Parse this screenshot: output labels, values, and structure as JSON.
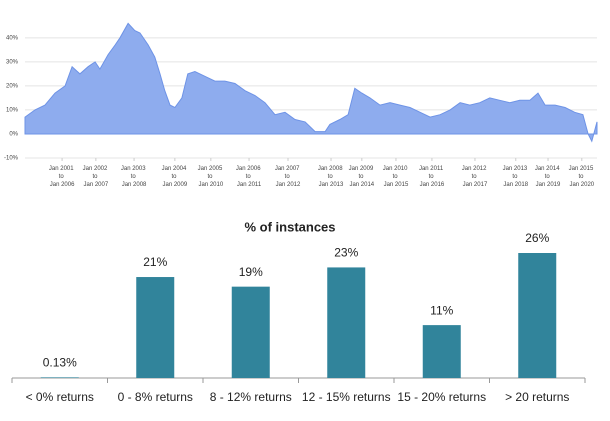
{
  "chart_data": [
    {
      "type": "area",
      "color": "#8eacee",
      "line_color": "#6e93e6",
      "grid": true,
      "x": [
        2000.0,
        2000.27,
        2000.54,
        2000.81,
        2001.08,
        2001.27,
        2001.48,
        2001.7,
        2001.89,
        2002.02,
        2002.24,
        2002.43,
        2002.56,
        2002.78,
        2002.96,
        2003.1,
        2003.32,
        2003.5,
        2003.64,
        2003.77,
        2003.91,
        2004.04,
        2004.23,
        2004.39,
        2004.58,
        2004.85,
        2005.12,
        2005.39,
        2005.66,
        2005.93,
        2006.2,
        2006.47,
        2006.74,
        2007.01,
        2007.28,
        2007.55,
        2007.82,
        2008.09,
        2008.22,
        2008.49,
        2008.71,
        2008.89,
        2009.08,
        2009.3,
        2009.57,
        2009.84,
        2010.11,
        2010.38,
        2010.65,
        2010.92,
        2011.19,
        2011.46,
        2011.73,
        2011.99,
        2012.26,
        2012.53,
        2012.8,
        2013.07,
        2013.34,
        2013.61,
        2013.83,
        2014.02,
        2014.29,
        2014.56,
        2014.82,
        2015.04,
        2015.18,
        2015.28,
        2015.42
      ],
      "values": [
        7,
        10,
        12,
        17,
        20,
        28,
        25,
        28,
        30,
        27,
        33,
        37,
        40,
        46,
        43,
        42,
        37,
        32,
        25,
        18,
        12,
        11,
        15,
        25,
        26,
        24,
        22,
        22,
        21,
        18,
        16,
        13,
        8,
        9,
        6,
        5,
        1,
        1,
        4,
        6,
        8,
        19,
        17,
        15,
        12,
        13,
        12,
        11,
        9,
        7,
        8,
        10,
        13,
        12,
        13,
        15,
        14,
        13,
        14,
        14,
        17,
        12,
        12,
        11,
        9,
        8,
        0,
        -3,
        5
      ],
      "xlim": [
        2000,
        2015.42
      ],
      "xticks": [
        {
          "value": 2001.0,
          "label": "Jan 2001 to Jan 2006"
        },
        {
          "value": 2001.91,
          "label": "Jan 2002 to Jan 2007"
        },
        {
          "value": 2002.94,
          "label": "Jan 2003 to Jan 2008"
        },
        {
          "value": 2004.04,
          "label": "Jan 2004 to Jan 2009"
        },
        {
          "value": 2005.01,
          "label": "Jan 2005 to Jan 2010"
        },
        {
          "value": 2006.04,
          "label": "Jan 2006 to Jan 2011"
        },
        {
          "value": 2007.09,
          "label": "Jan 2007 to Jan 2012"
        },
        {
          "value": 2008.25,
          "label": "Jan 2008 to Jan 2013"
        },
        {
          "value": 2009.08,
          "label": "Jan 2009 to Jan 2014"
        },
        {
          "value": 2010.0,
          "label": "Jan 2010 to Jan 2015"
        },
        {
          "value": 2010.97,
          "label": "Jan 2011 to Jan 2016"
        },
        {
          "value": 2012.13,
          "label": "Jan 2012 to Jan 2017"
        },
        {
          "value": 2013.23,
          "label": "Jan 2013 to Jan 2018"
        },
        {
          "value": 2014.1,
          "label": "Jan 2014 to Jan 2019"
        },
        {
          "value": 2015.01,
          "label": "Jan 2015 to Jan 2020"
        }
      ],
      "ylim": [
        -10,
        47
      ],
      "yticks": [
        {
          "value": -10,
          "label": "-10%"
        },
        {
          "value": 0,
          "label": "0%"
        },
        {
          "value": 10,
          "label": "10%"
        },
        {
          "value": 20,
          "label": "20%"
        },
        {
          "value": 30,
          "label": "30%"
        },
        {
          "value": 40,
          "label": "40%"
        }
      ]
    },
    {
      "type": "bar",
      "title": "% of instances",
      "color": "#31849b",
      "categories": [
        "< 0% returns",
        "0 - 8% returns",
        "8 - 12% returns",
        "12 - 15% returns",
        "15 - 20% returns",
        "> 20 returns"
      ],
      "values": [
        0.13,
        21,
        19,
        23,
        11,
        26
      ],
      "value_labels": [
        "0.13%",
        "21%",
        "19%",
        "23%",
        "11%",
        "26%"
      ]
    }
  ]
}
